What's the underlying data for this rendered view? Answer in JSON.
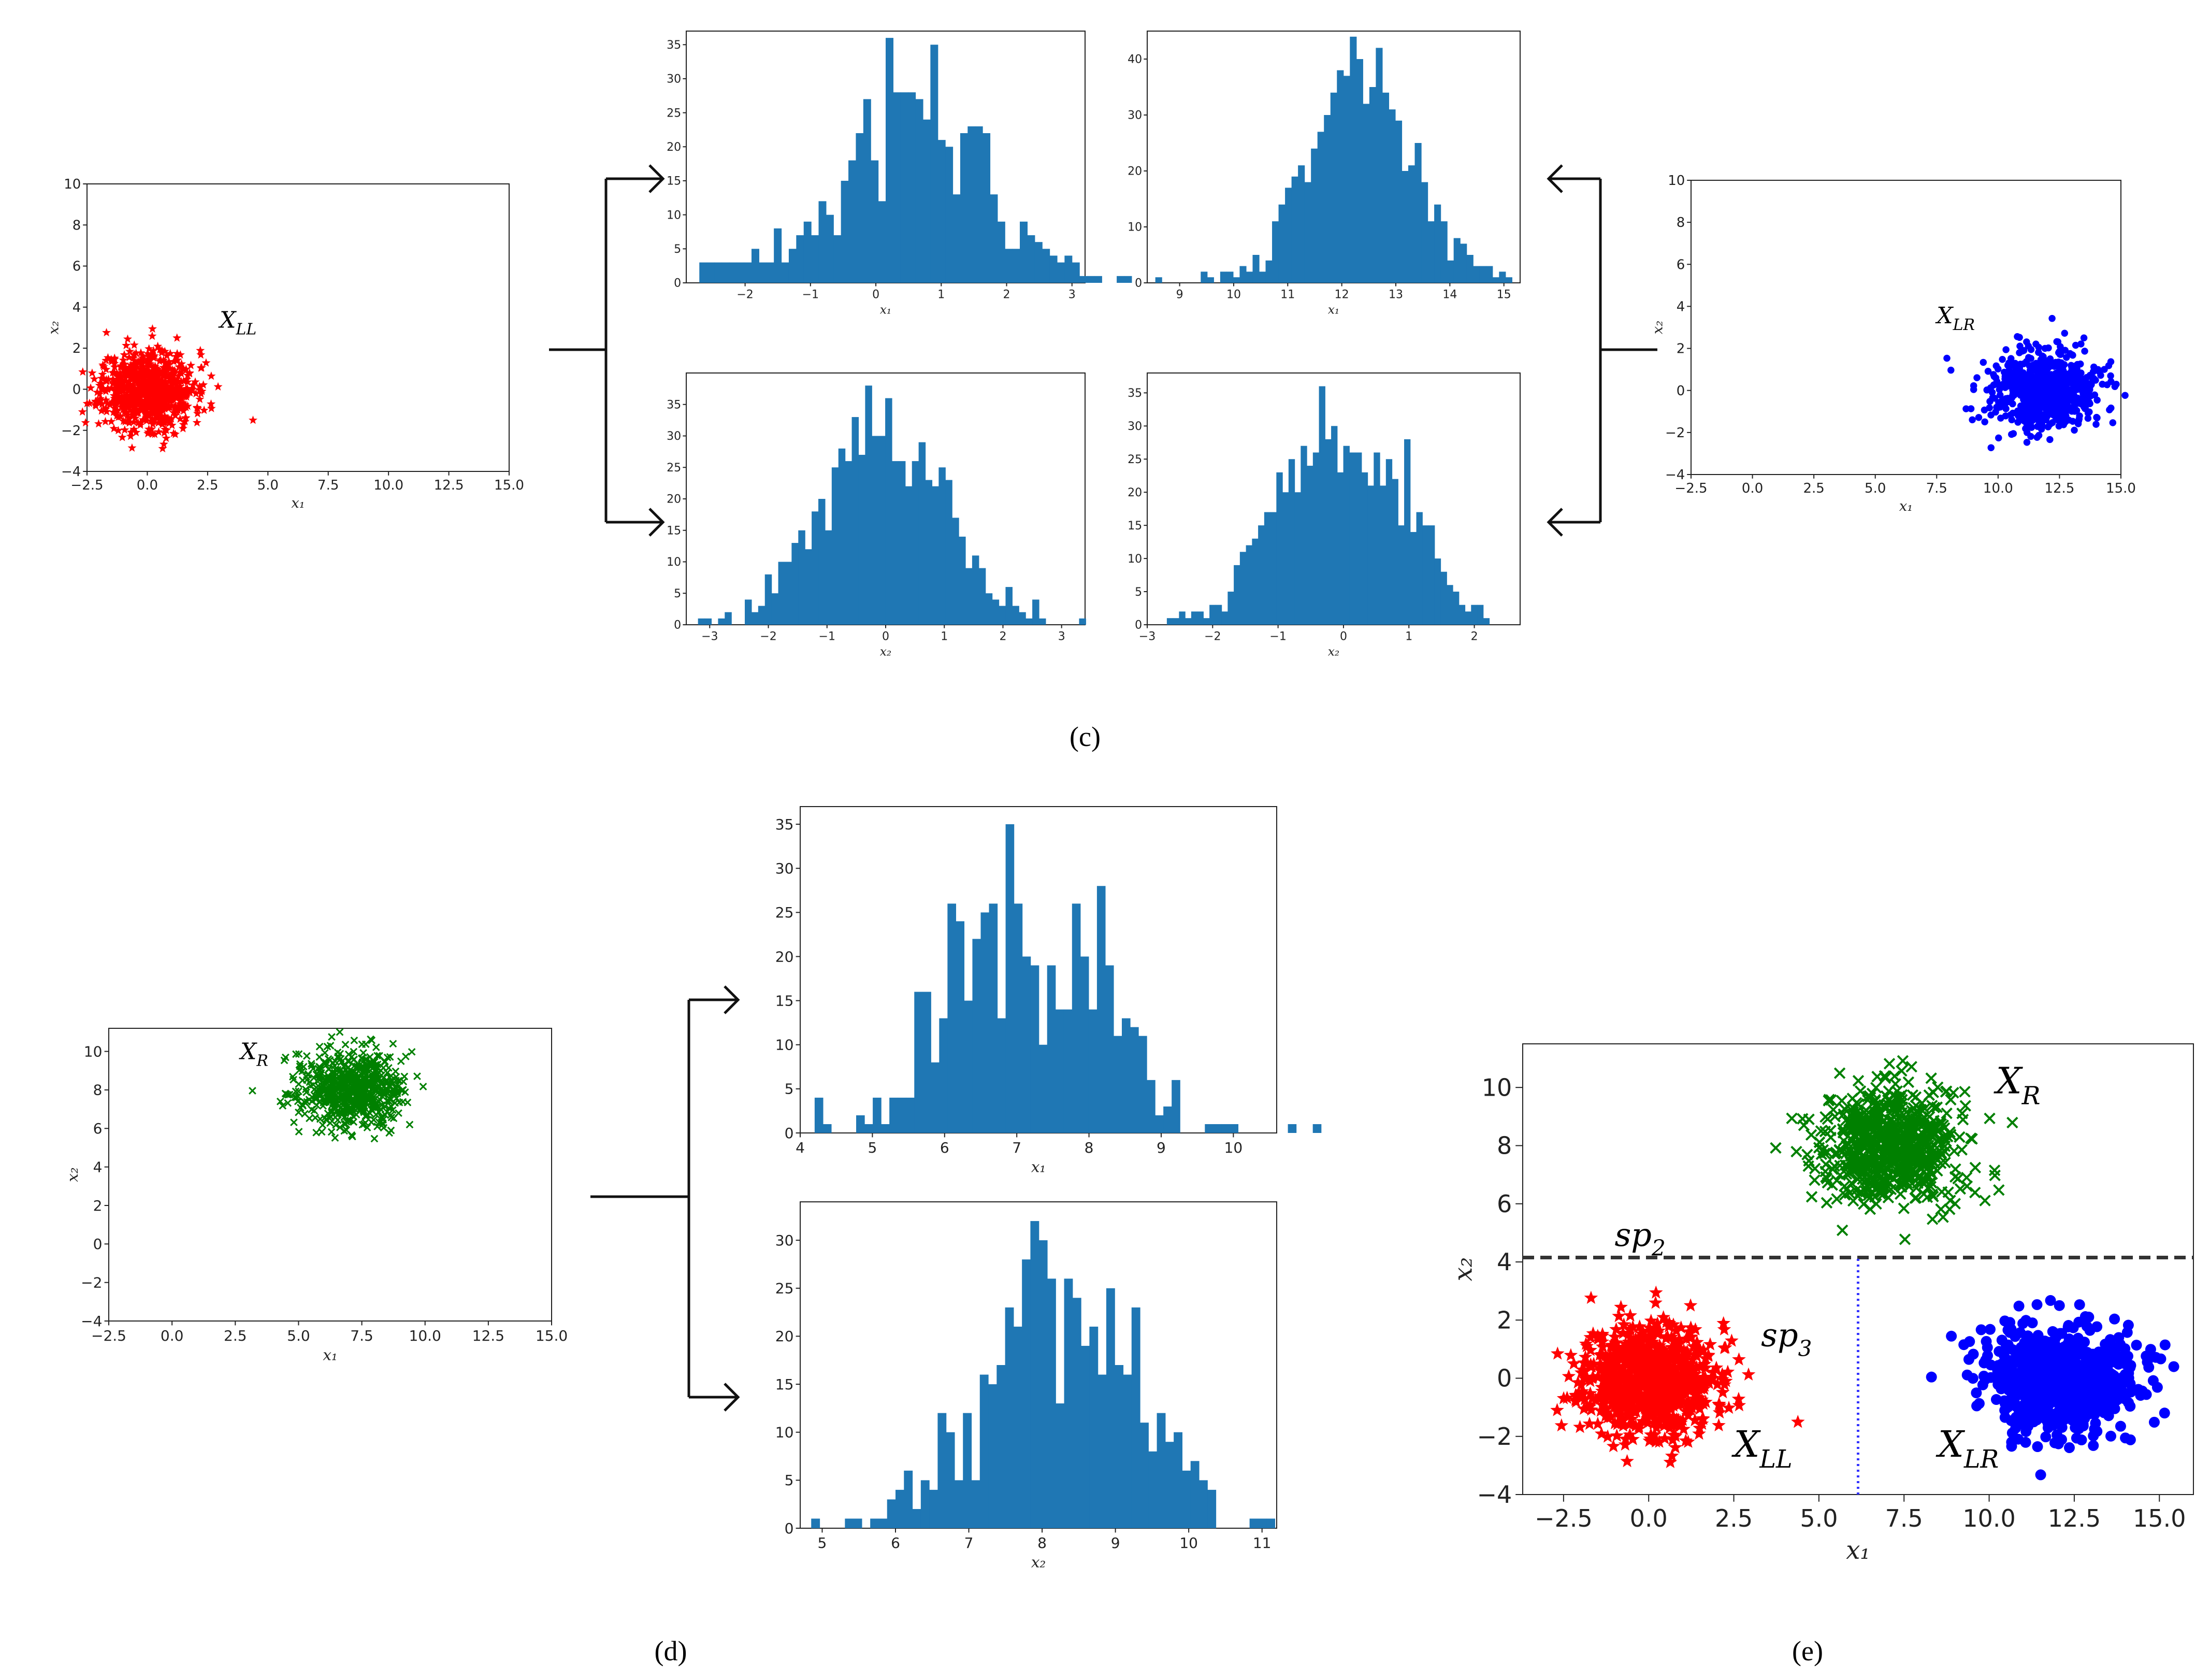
{
  "panel_labels": {
    "c": "(c)",
    "d": "(d)",
    "e": "(e)"
  },
  "colors": {
    "red": "#ff0000",
    "green": "#008000",
    "blue": "#0000ff",
    "hist": "#1f77b4",
    "sp2_line": "#333333",
    "sp3_line": "#3333ff"
  },
  "chart_data": [
    {
      "id": "c_scatter_LL",
      "type": "scatter",
      "xlabel": "x₁",
      "ylabel": "x₂",
      "xlim": [
        -2.5,
        15.0
      ],
      "ylim": [
        -4,
        10
      ],
      "xticks": [
        "-2.5",
        "0.0",
        "2.5",
        "5.0",
        "7.5",
        "10.0",
        "12.5",
        "15.0"
      ],
      "yticks": [
        "-4",
        "-2",
        "0",
        "2",
        "4",
        "6",
        "8",
        "10"
      ],
      "series": [
        {
          "name": "X_LL",
          "label_main": "X",
          "label_sub": "LL",
          "marker": "star",
          "color": "#ff0000",
          "center": [
            0,
            0
          ],
          "sd": [
            0.95,
            0.95
          ],
          "n": 800
        }
      ]
    },
    {
      "id": "c_hist_LL_x1",
      "type": "histogram",
      "xlabel": "x₁",
      "xlim": [
        -2.9,
        3.2
      ],
      "ylim": [
        0,
        37
      ],
      "xticks": [
        "-2",
        "-1",
        "0",
        "1",
        "2",
        "3"
      ],
      "yticks": [
        "0",
        "5",
        "10",
        "15",
        "20",
        "25",
        "30",
        "35"
      ],
      "bin_start": -2.7,
      "bin_width": 0.114,
      "counts": [
        3,
        3,
        3,
        3,
        3,
        3,
        3,
        5,
        3,
        3,
        8,
        3,
        5,
        7,
        9,
        7,
        12,
        10,
        7,
        15,
        18,
        22,
        27,
        18,
        12,
        36,
        28,
        28,
        28,
        27,
        24,
        35,
        21,
        20,
        13,
        22,
        23,
        23,
        22,
        13,
        9,
        5,
        5,
        9,
        7,
        6,
        5,
        4,
        3,
        4,
        3,
        1,
        1,
        1,
        0,
        0,
        1,
        1
      ]
    },
    {
      "id": "c_hist_LR_x1",
      "type": "histogram",
      "xlabel": "x₁",
      "xlim": [
        8.4,
        15.3
      ],
      "ylim": [
        0,
        45
      ],
      "xticks": [
        "9",
        "10",
        "11",
        "12",
        "13",
        "14",
        "15"
      ],
      "yticks": [
        "0",
        "10",
        "20",
        "30",
        "40"
      ],
      "bin_start": 8.55,
      "bin_width": 0.12,
      "counts": [
        1,
        0,
        0,
        0,
        0,
        0,
        0,
        2,
        1,
        0,
        2,
        2,
        1,
        3,
        2,
        5,
        2,
        4,
        11,
        14,
        17,
        19,
        21,
        18,
        24,
        27,
        30,
        34,
        38,
        37,
        44,
        40,
        32,
        35,
        42,
        34,
        31,
        29,
        20,
        21,
        25,
        18,
        11,
        14,
        11,
        4,
        8,
        7,
        5,
        3,
        3,
        3,
        1,
        2,
        1
      ]
    },
    {
      "id": "c_hist_LL_x2",
      "type": "histogram",
      "xlabel": "x₂",
      "xlim": [
        -3.4,
        3.4
      ],
      "ylim": [
        0,
        40
      ],
      "xticks": [
        "-3",
        "-2",
        "-1",
        "0",
        "1",
        "2",
        "3"
      ],
      "yticks": [
        "0",
        "5",
        "10",
        "15",
        "20",
        "25",
        "30",
        "35"
      ],
      "bin_start": -3.2,
      "bin_width": 0.114,
      "counts": [
        1,
        1,
        0,
        1,
        2,
        0,
        0,
        4,
        2,
        3,
        8,
        5,
        10,
        10,
        13,
        15,
        12,
        18,
        20,
        15,
        25,
        28,
        26,
        33,
        27,
        38,
        30,
        30,
        36,
        26,
        26,
        22,
        26,
        29,
        23,
        22,
        25,
        23,
        17,
        14,
        9,
        11,
        9,
        5,
        4,
        3,
        6,
        3,
        2,
        1,
        4,
        1,
        0,
        0,
        0,
        0,
        0,
        1
      ]
    },
    {
      "id": "c_hist_LR_x2",
      "type": "histogram",
      "xlabel": "x₂",
      "xlim": [
        -3.0,
        2.7
      ],
      "ylim": [
        0,
        38
      ],
      "xticks": [
        "-3",
        "-2",
        "-1",
        "0",
        "1",
        "2"
      ],
      "yticks": [
        "0",
        "5",
        "10",
        "15",
        "20",
        "25",
        "30",
        "35"
      ],
      "bin_start": -2.7,
      "bin_width": 0.093,
      "counts": [
        1,
        1,
        2,
        1,
        2,
        2,
        1,
        3,
        3,
        2,
        5,
        9,
        11,
        12,
        13,
        15,
        17,
        17,
        23,
        20,
        25,
        20,
        27,
        24,
        26,
        36,
        28,
        30,
        23,
        27,
        26,
        26,
        23,
        21,
        26,
        21,
        25,
        22,
        15,
        28,
        14,
        17,
        15,
        15,
        10,
        8,
        6,
        5,
        3,
        2,
        3,
        3,
        1
      ]
    },
    {
      "id": "c_scatter_LR",
      "type": "scatter",
      "xlabel": "x₁",
      "ylabel": "x₂",
      "xlim": [
        -2.5,
        15.0
      ],
      "ylim": [
        -4,
        10
      ],
      "xticks": [
        "-2.5",
        "0.0",
        "2.5",
        "5.0",
        "7.5",
        "10.0",
        "12.5",
        "15.0"
      ],
      "yticks": [
        "-4",
        "-2",
        "0",
        "2",
        "4",
        "6",
        "8",
        "10"
      ],
      "series": [
        {
          "name": "X_LR",
          "label_main": "X",
          "label_sub": "LR",
          "marker": "circle",
          "color": "#0000ff",
          "center": [
            12,
            0
          ],
          "sd": [
            1.1,
            0.9
          ],
          "n": 800
        }
      ]
    },
    {
      "id": "d_scatter_R",
      "type": "scatter",
      "xlabel": "x₁",
      "ylabel": "x₂",
      "xlim": [
        -2.5,
        15.0
      ],
      "ylim": [
        -4,
        11.2
      ],
      "xticks": [
        "-2.5",
        "0.0",
        "2.5",
        "5.0",
        "7.5",
        "10.0",
        "12.5",
        "15.0"
      ],
      "yticks": [
        "-4",
        "-2",
        "0",
        "2",
        "4",
        "6",
        "8",
        "10"
      ],
      "series": [
        {
          "name": "X_R",
          "label_main": "X",
          "label_sub": "R",
          "marker": "x",
          "color": "#008000",
          "center": [
            7.1,
            8
          ],
          "sd": [
            1.0,
            0.95
          ],
          "n": 700
        }
      ]
    },
    {
      "id": "d_hist_R_x1",
      "type": "histogram",
      "xlabel": "x₁",
      "xlim": [
        4.0,
        10.6
      ],
      "ylim": [
        0,
        37
      ],
      "xticks": [
        "4",
        "5",
        "6",
        "7",
        "8",
        "9",
        "10"
      ],
      "yticks": [
        "0",
        "5",
        "10",
        "15",
        "20",
        "25",
        "30",
        "35"
      ],
      "bin_start": 4.2,
      "bin_width": 0.115,
      "counts": [
        4,
        1,
        0,
        0,
        0,
        2,
        1,
        4,
        1,
        4,
        4,
        4,
        16,
        16,
        8,
        13,
        26,
        24,
        15,
        22,
        25,
        26,
        13,
        35,
        26,
        20,
        19,
        10,
        19,
        14,
        14,
        26,
        20,
        14,
        28,
        19,
        11,
        13,
        12,
        11,
        6,
        2,
        3,
        6,
        0,
        0,
        0,
        1,
        1,
        1,
        1,
        0,
        0,
        0,
        0,
        0,
        0,
        1,
        0,
        0,
        1
      ]
    },
    {
      "id": "d_hist_R_x2",
      "type": "histogram",
      "xlabel": "x₂",
      "xlim": [
        4.7,
        11.2
      ],
      "ylim": [
        0,
        34
      ],
      "xticks": [
        "5",
        "6",
        "7",
        "8",
        "9",
        "10",
        "11"
      ],
      "yticks": [
        "0",
        "5",
        "10",
        "15",
        "20",
        "25",
        "30"
      ],
      "bin_start": 4.85,
      "bin_width": 0.115,
      "counts": [
        1,
        0,
        0,
        0,
        1,
        1,
        0,
        1,
        1,
        3,
        4,
        6,
        2,
        5,
        4,
        12,
        10,
        5,
        12,
        5,
        16,
        15,
        17,
        23,
        21,
        28,
        32,
        30,
        26,
        13,
        26,
        24,
        19,
        21,
        16,
        25,
        17,
        16,
        23,
        11,
        8,
        12,
        9,
        10,
        6,
        7,
        5,
        4,
        0,
        0,
        0,
        0,
        1,
        1,
        1
      ]
    },
    {
      "id": "e_scatter_all",
      "type": "scatter",
      "xlabel": "x₁",
      "ylabel": "x₂",
      "xlim": [
        -3.7,
        16.0
      ],
      "ylim": [
        -4,
        11.5
      ],
      "xticks": [
        "-2.5",
        "0.0",
        "2.5",
        "5.0",
        "7.5",
        "10.0",
        "12.5",
        "15.0"
      ],
      "yticks": [
        "-4",
        "-2",
        "0",
        "2",
        "4",
        "6",
        "8",
        "10"
      ],
      "series": [
        {
          "name": "X_LL",
          "label_main": "X",
          "label_sub": "LL",
          "marker": "star",
          "color": "#ff0000",
          "center": [
            0,
            0
          ],
          "sd": [
            0.95,
            0.95
          ],
          "n": 800
        },
        {
          "name": "X_LR",
          "label_main": "X",
          "label_sub": "LR",
          "marker": "circle",
          "color": "#0000ff",
          "center": [
            12,
            0
          ],
          "sd": [
            1.1,
            0.9
          ],
          "n": 800
        },
        {
          "name": "X_R",
          "label_main": "X",
          "label_sub": "R",
          "marker": "x",
          "color": "#008000",
          "center": [
            7.1,
            8
          ],
          "sd": [
            1.0,
            0.95
          ],
          "n": 700
        }
      ],
      "annotations": [
        {
          "text_main": "sp",
          "text_sub": "2",
          "kind": "horizontal dashed line",
          "value": 4.15
        },
        {
          "text_main": "sp",
          "text_sub": "3",
          "kind": "vertical dotted line",
          "value": 6.15,
          "from_y": -4,
          "to_y": 4.15
        }
      ]
    }
  ]
}
